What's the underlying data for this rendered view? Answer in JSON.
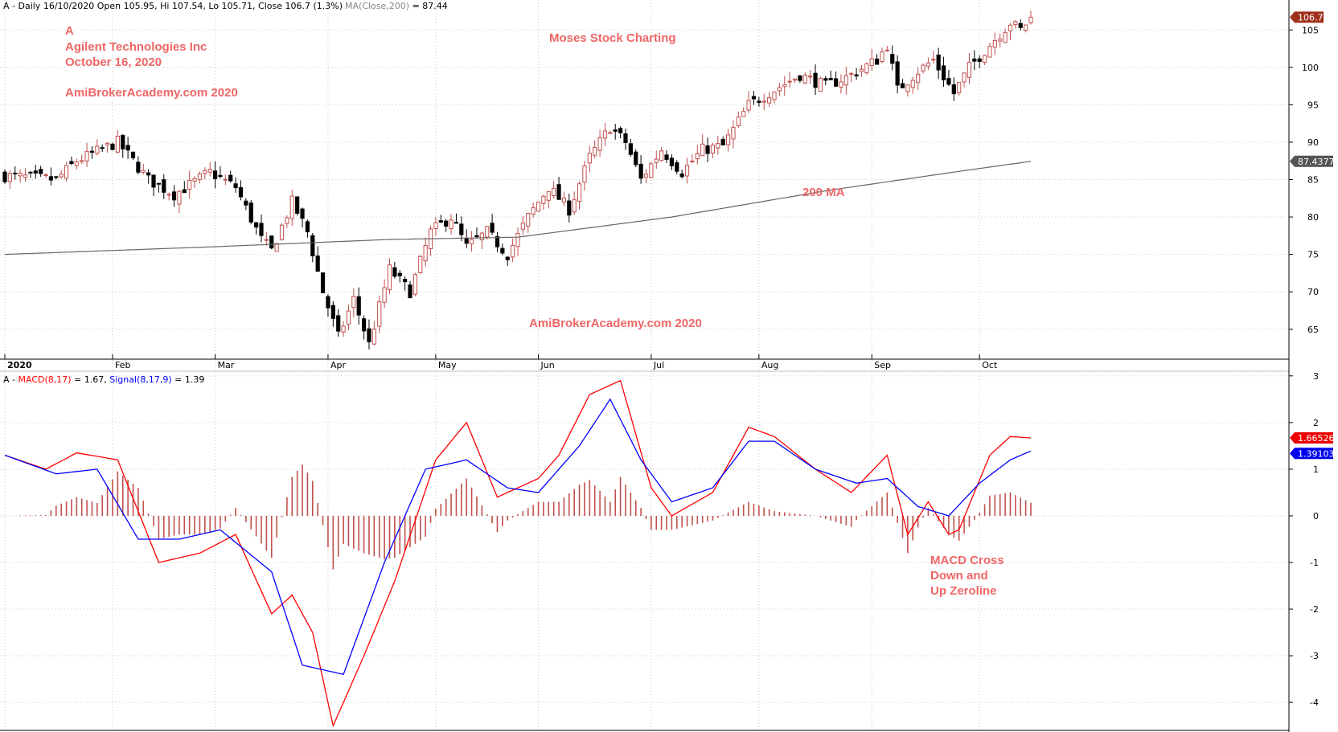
{
  "price_header": {
    "prefix": "A - Daily 16/10/2020 Open 105.95, Hi 107.54, Lo 105.71, Close 106.7 (1.3%)",
    "ma": "MA(Close,200)",
    "ma_value": " = 87.44"
  },
  "macd_header": {
    "prefix": "A - ",
    "macd": "MACD(8,17)",
    "macd_value": " = 1.67, ",
    "signal": "Signal(8,17,9)",
    "signal_value": " = 1.39"
  },
  "annotations": {
    "ticker": "A",
    "company": "Agilent Technologies Inc",
    "date": "October 16, 2020",
    "site_top": "AmiBrokerAcademy.com  2020",
    "site_center": "Moses Stock Charting",
    "site_bottom": "AmiBrokerAcademy.com  2020",
    "ma_label": "200 MA",
    "macd_note_1": "MACD Cross",
    "macd_note_2": "Down and",
    "macd_note_3": "Up Zeroline"
  },
  "price_tags": {
    "close": "106.7",
    "ma": "87.4377",
    "macd": "1.66526",
    "signal": "1.39103"
  },
  "colors": {
    "up": "#c0504d",
    "down": "#000000",
    "ma": "#666666",
    "macd": "#ff0000",
    "signal": "#0000ff",
    "hist": "#c0504d",
    "annotation": "#ee6666",
    "grid": "#c8c8c8"
  },
  "chart_data": [
    {
      "type": "candlestick",
      "ylim": [
        61,
        109
      ],
      "yticks": [
        65,
        70,
        75,
        80,
        85,
        90,
        95,
        100,
        105
      ],
      "x_months": [
        "2020",
        "Feb",
        "Mar",
        "Apr",
        "May",
        "Jun",
        "Jul",
        "Aug",
        "Sep",
        "Oct"
      ],
      "anchors": [
        [
          0,
          85.5
        ],
        [
          10,
          85.0
        ],
        [
          14,
          87.5
        ],
        [
          22,
          90.0
        ],
        [
          28,
          85.0
        ],
        [
          33,
          83.0
        ],
        [
          40,
          86.0
        ],
        [
          45,
          84.0
        ],
        [
          50,
          77.0
        ],
        [
          52,
          75.5
        ],
        [
          56,
          82.0
        ],
        [
          59,
          78.0
        ],
        [
          62,
          70.0
        ],
        [
          65,
          64.0
        ],
        [
          68,
          69.0
        ],
        [
          71,
          63.0
        ],
        [
          75,
          73.0
        ],
        [
          79,
          70.0
        ],
        [
          83,
          78.0
        ],
        [
          87,
          80.0
        ],
        [
          90,
          76.0
        ],
        [
          94,
          78.0
        ],
        [
          98,
          75.0
        ],
        [
          102,
          80.0
        ],
        [
          106,
          84.0
        ],
        [
          110,
          81.0
        ],
        [
          114,
          88.0
        ],
        [
          118,
          92.0
        ],
        [
          121,
          90.0
        ],
        [
          124,
          85.0
        ],
        [
          128,
          89.0
        ],
        [
          132,
          86.0
        ],
        [
          136,
          89.0
        ],
        [
          140,
          89.5
        ],
        [
          145,
          95.0
        ],
        [
          150,
          97.0
        ],
        [
          155,
          99.0
        ],
        [
          160,
          97.5
        ],
        [
          165,
          99.0
        ],
        [
          170,
          101.0
        ],
        [
          172,
          103.0
        ],
        [
          174,
          97.0
        ],
        [
          178,
          99.5
        ],
        [
          181,
          101.0
        ],
        [
          185,
          96.5
        ],
        [
          188,
          100.0
        ],
        [
          192,
          103.0
        ],
        [
          196,
          106.0
        ],
        [
          198,
          105.0
        ],
        [
          200,
          106.7
        ]
      ],
      "count": 201,
      "ma200": [
        [
          0,
          75.0
        ],
        [
          40,
          76.0
        ],
        [
          75,
          77.0
        ],
        [
          100,
          77.3
        ],
        [
          130,
          80.0
        ],
        [
          160,
          83.5
        ],
        [
          185,
          86.0
        ],
        [
          200,
          87.44
        ]
      ],
      "last": {
        "open": 105.95,
        "high": 107.54,
        "low": 105.71,
        "close": 106.7
      },
      "ma_last": 87.44
    },
    {
      "type": "macd",
      "ylim": [
        -4.6,
        3.1
      ],
      "yticks": [
        -4,
        -3,
        -2,
        -1,
        0,
        1,
        2,
        3
      ],
      "macd": [
        [
          0,
          1.3
        ],
        [
          8,
          1.0
        ],
        [
          14,
          1.35
        ],
        [
          22,
          1.2
        ],
        [
          30,
          -1.0
        ],
        [
          38,
          -0.8
        ],
        [
          45,
          -0.4
        ],
        [
          52,
          -2.1
        ],
        [
          56,
          -1.7
        ],
        [
          60,
          -2.5
        ],
        [
          64,
          -4.5
        ],
        [
          70,
          -3.0
        ],
        [
          76,
          -1.4
        ],
        [
          84,
          1.2
        ],
        [
          90,
          2.0
        ],
        [
          96,
          0.4
        ],
        [
          104,
          0.8
        ],
        [
          108,
          1.3
        ],
        [
          114,
          2.6
        ],
        [
          120,
          2.9
        ],
        [
          126,
          0.6
        ],
        [
          130,
          0.0
        ],
        [
          138,
          0.5
        ],
        [
          145,
          1.9
        ],
        [
          150,
          1.7
        ],
        [
          158,
          1.0
        ],
        [
          165,
          0.5
        ],
        [
          172,
          1.3
        ],
        [
          176,
          -0.4
        ],
        [
          180,
          0.3
        ],
        [
          184,
          -0.4
        ],
        [
          186,
          -0.3
        ],
        [
          192,
          1.3
        ],
        [
          196,
          1.7
        ],
        [
          200,
          1.67
        ]
      ],
      "signal": [
        [
          0,
          1.3
        ],
        [
          10,
          0.9
        ],
        [
          18,
          1.0
        ],
        [
          26,
          -0.5
        ],
        [
          34,
          -0.5
        ],
        [
          42,
          -0.3
        ],
        [
          52,
          -1.2
        ],
        [
          58,
          -3.2
        ],
        [
          66,
          -3.4
        ],
        [
          74,
          -1.0
        ],
        [
          82,
          1.0
        ],
        [
          90,
          1.2
        ],
        [
          98,
          0.6
        ],
        [
          104,
          0.5
        ],
        [
          112,
          1.5
        ],
        [
          118,
          2.5
        ],
        [
          124,
          1.2
        ],
        [
          130,
          0.3
        ],
        [
          138,
          0.6
        ],
        [
          145,
          1.6
        ],
        [
          150,
          1.6
        ],
        [
          158,
          1.0
        ],
        [
          166,
          0.7
        ],
        [
          172,
          0.8
        ],
        [
          178,
          0.2
        ],
        [
          184,
          0.0
        ],
        [
          190,
          0.7
        ],
        [
          196,
          1.2
        ],
        [
          200,
          1.39
        ]
      ],
      "macd_last": 1.67,
      "signal_last": 1.39
    }
  ]
}
